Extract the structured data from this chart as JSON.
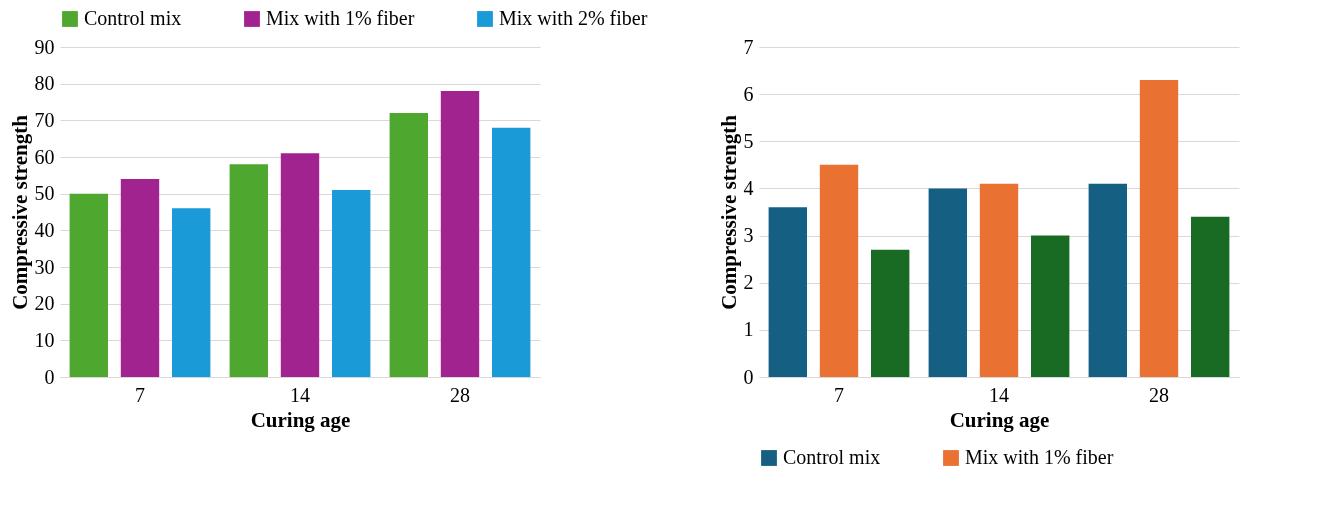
{
  "chart_data": [
    {
      "type": "bar",
      "xlabel": "Curing age",
      "ylabel": "Compressive strength",
      "categories": [
        "7",
        "14",
        "28"
      ],
      "ylim": [
        0,
        90
      ],
      "yticks": [
        0,
        10,
        20,
        30,
        40,
        50,
        60,
        70,
        80,
        90
      ],
      "grid": "y",
      "legend": "top",
      "series": [
        {
          "name": "Control mix",
          "color": "#4ea72e",
          "values": [
            50,
            58,
            72
          ]
        },
        {
          "name": "Mix with 1% fiber",
          "color": "#a0238f",
          "values": [
            54,
            61,
            78
          ]
        },
        {
          "name": "Mix with 2% fiber",
          "color": "#1a9ad6",
          "values": [
            46,
            51,
            68
          ]
        }
      ]
    },
    {
      "type": "bar",
      "xlabel": "Curing age",
      "ylabel": "Compressive strength",
      "categories": [
        "7",
        "14",
        "28"
      ],
      "ylim": [
        0,
        7
      ],
      "yticks": [
        0,
        1,
        2,
        3,
        4,
        5,
        6,
        7
      ],
      "grid": "y",
      "legend": "bottom",
      "series": [
        {
          "name": "Control mix",
          "color": "#156082",
          "values": [
            3.6,
            4.0,
            4.1
          ]
        },
        {
          "name": "Mix with 1% fiber",
          "color": "#e97132",
          "values": [
            4.5,
            4.1,
            6.3
          ]
        },
        {
          "color": "#196b24",
          "values": [
            2.7,
            3.0,
            3.4
          ]
        }
      ]
    }
  ]
}
